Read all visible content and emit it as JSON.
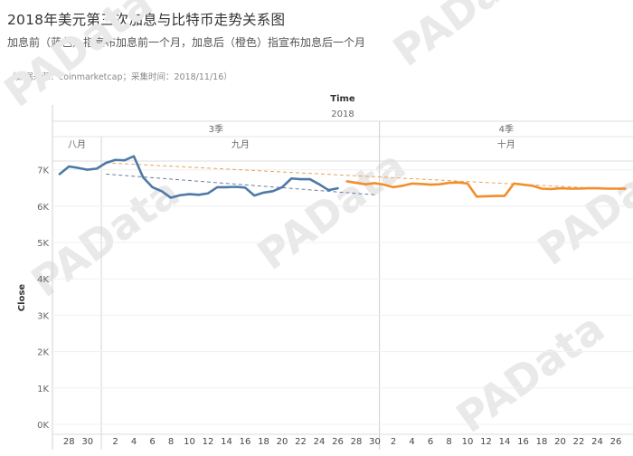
{
  "header": {
    "title": "2018年美元第三次加息与比特币走势关系图",
    "subtitle": "加息前（蓝色）指宣布加息前一个月，加息后（橙色）指宣布加息后一个月",
    "source": "（数据来源：coinmarketcap；采集时间：2018/11/16）"
  },
  "watermark": "PAData",
  "chart_data": {
    "type": "line",
    "x_title": "Time",
    "year_label": "2018",
    "quarters": [
      {
        "label": "3季",
        "months": [
          {
            "label": "八月",
            "ticks": [
              "28",
              "30"
            ]
          },
          {
            "label": "九月",
            "ticks": [
              "2",
              "4",
              "6",
              "8",
              "10",
              "12",
              "14",
              "16",
              "18",
              "20",
              "22",
              "24",
              "26",
              "28",
              "30"
            ]
          }
        ]
      },
      {
        "label": "4季",
        "months": [
          {
            "label": "十月",
            "ticks": [
              "2",
              "4",
              "6",
              "8",
              "10",
              "12",
              "14",
              "16",
              "18",
              "20",
              "22",
              "24",
              "26"
            ]
          }
        ]
      }
    ],
    "ylabel": "Close",
    "ylim": [
      0,
      7500
    ],
    "y_ticks": [
      "0K",
      "1K",
      "2K",
      "3K",
      "4K",
      "5K",
      "6K",
      "7K"
    ],
    "colors": {
      "before": "#4e79a7",
      "after": "#f28e2b",
      "trend_before": "#6b7fa3",
      "trend_after": "#e8a25c"
    },
    "series": [
      {
        "color_key": "before",
        "dates": [
          "2018-08-27",
          "2018-08-28",
          "2018-08-29",
          "2018-08-30",
          "2018-08-31",
          "2018-09-01",
          "2018-09-02",
          "2018-09-03",
          "2018-09-04",
          "2018-09-05",
          "2018-09-06",
          "2018-09-07",
          "2018-09-08",
          "2018-09-09",
          "2018-09-10",
          "2018-09-11",
          "2018-09-12",
          "2018-09-13",
          "2018-09-14",
          "2018-09-15",
          "2018-09-16",
          "2018-09-17",
          "2018-09-18",
          "2018-09-19",
          "2018-09-20",
          "2018-09-21",
          "2018-09-22",
          "2018-09-23",
          "2018-09-24",
          "2018-09-25",
          "2018-09-26"
        ],
        "values": [
          6880,
          7090,
          7050,
          7000,
          7030,
          7190,
          7270,
          7260,
          7370,
          6790,
          6520,
          6410,
          6230,
          6300,
          6330,
          6310,
          6350,
          6520,
          6520,
          6530,
          6510,
          6290,
          6370,
          6410,
          6520,
          6760,
          6740,
          6740,
          6600,
          6440,
          6490
        ]
      },
      {
        "color_key": "after",
        "dates": [
          "2018-09-27",
          "2018-09-28",
          "2018-09-29",
          "2018-09-30",
          "2018-10-01",
          "2018-10-02",
          "2018-10-03",
          "2018-10-04",
          "2018-10-05",
          "2018-10-06",
          "2018-10-07",
          "2018-10-08",
          "2018-10-09",
          "2018-10-10",
          "2018-10-11",
          "2018-10-12",
          "2018-10-13",
          "2018-10-14",
          "2018-10-15",
          "2018-10-16",
          "2018-10-17",
          "2018-10-18",
          "2018-10-19",
          "2018-10-20",
          "2018-10-21",
          "2018-10-22",
          "2018-10-23",
          "2018-10-24",
          "2018-10-25",
          "2018-10-26",
          "2018-10-27"
        ],
        "values": [
          6680,
          6640,
          6600,
          6630,
          6590,
          6520,
          6560,
          6620,
          6610,
          6590,
          6600,
          6640,
          6650,
          6620,
          6260,
          6270,
          6280,
          6280,
          6620,
          6590,
          6560,
          6480,
          6470,
          6490,
          6480,
          6480,
          6490,
          6490,
          6480,
          6480,
          6480
        ]
      }
    ],
    "trend_lines": [
      {
        "color_key": "trend_before",
        "dates": [
          "2018-09-01",
          "2018-09-30"
        ],
        "values": [
          6880,
          6310
        ]
      },
      {
        "color_key": "trend_after",
        "dates": [
          "2018-09-01",
          "2018-10-27"
        ],
        "values": [
          7190,
          6450
        ]
      }
    ]
  }
}
